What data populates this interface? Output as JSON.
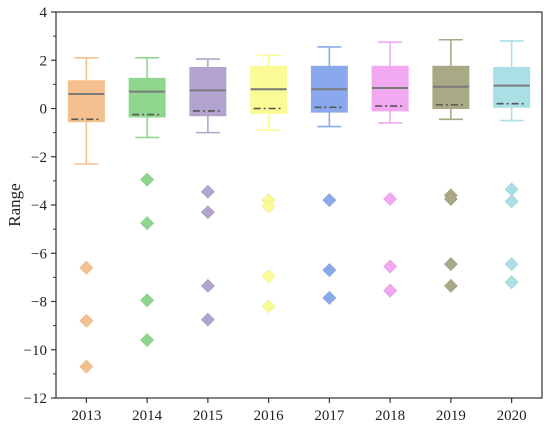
{
  "chart_data": {
    "type": "box",
    "ylabel": "Range",
    "xlabel": "",
    "ylim": [
      -12,
      4
    ],
    "yticks": [
      4,
      2,
      0,
      -2,
      -4,
      -6,
      -8,
      -10,
      -12
    ],
    "grid": false,
    "categories": [
      "2013",
      "2014",
      "2015",
      "2016",
      "2017",
      "2018",
      "2019",
      "2020"
    ],
    "colors": [
      "#f5c08f",
      "#8fd68f",
      "#b3a4cf",
      "#fafa96",
      "#8aa8ec",
      "#f2a8f0",
      "#aaa985",
      "#a8e0e6"
    ],
    "whisker_colors": [
      "#f5c08f",
      "#8fd68f",
      "#b3a4cf",
      "#fafa96",
      "#8aa8ec",
      "#f2a8f0",
      "#aaa985",
      "#a8e0e6"
    ],
    "boxes": [
      {
        "category": "2013",
        "whisker_low": -2.3,
        "q1": -0.55,
        "median": 0.6,
        "q3": 1.15,
        "whisker_high": 2.1,
        "mean": -0.45,
        "outliers": [
          -6.6,
          -8.8,
          -10.7
        ]
      },
      {
        "category": "2014",
        "whisker_low": -1.2,
        "q1": -0.35,
        "median": 0.7,
        "q3": 1.25,
        "whisker_high": 2.1,
        "mean": -0.25,
        "outliers": [
          -2.95,
          -4.75,
          -7.95,
          -9.6
        ]
      },
      {
        "category": "2015",
        "whisker_low": -1.0,
        "q1": -0.3,
        "median": 0.75,
        "q3": 1.7,
        "whisker_high": 2.05,
        "mean": -0.1,
        "outliers": [
          -3.45,
          -4.3,
          -7.35,
          -8.75
        ]
      },
      {
        "category": "2016",
        "whisker_low": -0.9,
        "q1": -0.2,
        "median": 0.8,
        "q3": 1.75,
        "whisker_high": 2.2,
        "mean": 0.0,
        "outliers": [
          -3.8,
          -4.05,
          -6.95,
          -8.2
        ]
      },
      {
        "category": "2017",
        "whisker_low": -0.75,
        "q1": -0.15,
        "median": 0.8,
        "q3": 1.75,
        "whisker_high": 2.55,
        "mean": 0.05,
        "outliers": [
          -3.8,
          -6.7,
          -7.85
        ]
      },
      {
        "category": "2018",
        "whisker_low": -0.6,
        "q1": -0.1,
        "median": 0.85,
        "q3": 1.75,
        "whisker_high": 2.75,
        "mean": 0.1,
        "outliers": [
          -3.75,
          -6.55,
          -7.55
        ]
      },
      {
        "category": "2019",
        "whisker_low": -0.45,
        "q1": 0.0,
        "median": 0.9,
        "q3": 1.75,
        "whisker_high": 2.85,
        "mean": 0.15,
        "outliers": [
          -3.6,
          -3.75,
          -6.45,
          -7.35
        ]
      },
      {
        "category": "2020",
        "whisker_low": -0.5,
        "q1": 0.05,
        "median": 0.95,
        "q3": 1.7,
        "whisker_high": 2.8,
        "mean": 0.2,
        "outliers": [
          -3.35,
          -3.85,
          -6.45,
          -7.2
        ]
      }
    ]
  }
}
